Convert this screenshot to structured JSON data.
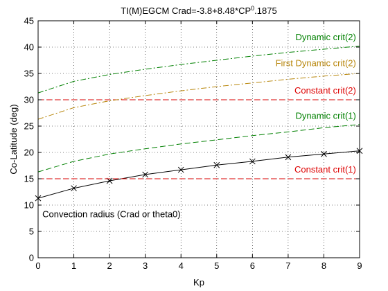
{
  "chart_data": {
    "type": "line",
    "title": "TI(M)EGCM Crad=-3.8+8.48*CP",
    "title_superscript": "0",
    "title_suffix": ".1875",
    "xlabel": "Kp",
    "ylabel": "Co-Latitude (deg)",
    "xlim": [
      0,
      9
    ],
    "ylim": [
      0,
      45
    ],
    "xticks": [
      0,
      1,
      2,
      3,
      4,
      5,
      6,
      7,
      8,
      9
    ],
    "yticks": [
      0,
      5,
      10,
      15,
      20,
      25,
      30,
      35,
      40,
      45
    ],
    "grid": true,
    "x": [
      0,
      1,
      2,
      3,
      4,
      5,
      6,
      7,
      8,
      9
    ],
    "series": [
      {
        "name": "Convection radius (Crad or theta0)",
        "style": "solid-marker-x",
        "color": "#000000",
        "values": [
          11.3,
          13.2,
          14.6,
          15.8,
          16.7,
          17.6,
          18.3,
          19.1,
          19.7,
          20.3
        ]
      },
      {
        "name": "Constant crit(1)",
        "style": "dashed",
        "color": "#dd0000",
        "values": [
          15,
          15,
          15,
          15,
          15,
          15,
          15,
          15,
          15,
          15
        ]
      },
      {
        "name": "Dynamic crit(1)",
        "style": "dashed",
        "color": "#008000",
        "values": [
          16.3,
          18.3,
          19.7,
          20.7,
          21.6,
          22.4,
          23.2,
          23.9,
          24.7,
          25.3
        ]
      },
      {
        "name": "Constant crit(2)",
        "style": "dashed",
        "color": "#dd0000",
        "values": [
          30,
          30,
          30,
          30,
          30,
          30,
          30,
          30,
          30,
          30
        ]
      },
      {
        "name": "First Dynamic crit(2)",
        "style": "dashdot",
        "color": "#b8860b",
        "values": [
          26.3,
          28.5,
          29.8,
          30.8,
          31.7,
          32.5,
          33.2,
          33.9,
          34.5,
          35.0
        ]
      },
      {
        "name": "Dynamic crit(2)",
        "style": "dashdot",
        "color": "#008000",
        "values": [
          31.3,
          33.5,
          34.8,
          35.8,
          36.7,
          37.5,
          38.3,
          39.0,
          39.6,
          40.2
        ]
      }
    ],
    "annotations": [
      {
        "text": "Dynamic crit(2)",
        "color": "#008000",
        "x": 8.9,
        "y": 41.3,
        "anchor": "end"
      },
      {
        "text": "First Dynamic crit(2)",
        "color": "#b8860b",
        "x": 8.9,
        "y": 36.4,
        "anchor": "end"
      },
      {
        "text": "Constant crit(2)",
        "color": "#dd0000",
        "x": 8.9,
        "y": 31.2,
        "anchor": "end"
      },
      {
        "text": "Dynamic crit(1)",
        "color": "#008000",
        "x": 8.9,
        "y": 26.4,
        "anchor": "end"
      },
      {
        "text": "Constant crit(1)",
        "color": "#dd0000",
        "x": 8.9,
        "y": 16.2,
        "anchor": "end"
      },
      {
        "text": "Convection radius (Crad or theta0)",
        "color": "#000000",
        "x": 0.12,
        "y": 7.7,
        "anchor": "start"
      }
    ]
  }
}
